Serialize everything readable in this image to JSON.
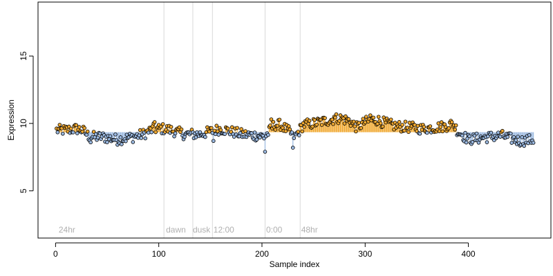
{
  "chart_data": {
    "type": "scatter",
    "title": "",
    "xlabel": "Sample index",
    "ylabel": "Expression",
    "xlim": [
      -17,
      480
    ],
    "ylim": [
      1.5,
      19.0
    ],
    "xticks": [
      0,
      100,
      200,
      300,
      400
    ],
    "yticks": [
      5,
      10,
      15
    ],
    "grid": false,
    "legend": "none",
    "baseline": 9.35,
    "x_range": [
      1,
      463
    ],
    "segment_boundaries": [
      105,
      133,
      152,
      203,
      237
    ],
    "segment_labels": [
      {
        "x": 3,
        "text": "24hr"
      },
      {
        "x": 107,
        "text": "dawn"
      },
      {
        "x": 133,
        "text": "dusk"
      },
      {
        "x": 153,
        "text": "12:00"
      },
      {
        "x": 204,
        "text": "0:00"
      },
      {
        "x": 238,
        "text": "48hr"
      }
    ],
    "profile": [
      [
        1,
        9.5
      ],
      [
        10,
        9.5
      ],
      [
        20,
        9.6
      ],
      [
        26,
        9.5
      ],
      [
        33,
        9.0
      ],
      [
        45,
        9.0
      ],
      [
        60,
        8.8
      ],
      [
        75,
        9.0
      ],
      [
        85,
        9.2
      ],
      [
        95,
        9.6
      ],
      [
        105,
        9.6
      ],
      [
        112,
        9.5
      ],
      [
        125,
        9.2
      ],
      [
        133,
        9.2
      ],
      [
        140,
        9.2
      ],
      [
        150,
        9.4
      ],
      [
        160,
        9.6
      ],
      [
        170,
        9.4
      ],
      [
        180,
        9.2
      ],
      [
        195,
        9.1
      ],
      [
        203,
        9.0
      ],
      [
        212,
        9.9
      ],
      [
        218,
        9.9
      ],
      [
        226,
        9.4
      ],
      [
        232,
        9.0
      ],
      [
        240,
        9.9
      ],
      [
        250,
        10.0
      ],
      [
        262,
        10.2
      ],
      [
        275,
        10.4
      ],
      [
        285,
        10.2
      ],
      [
        292,
        9.7
      ],
      [
        300,
        10.1
      ],
      [
        310,
        10.3
      ],
      [
        320,
        10.0
      ],
      [
        330,
        9.8
      ],
      [
        345,
        9.7
      ],
      [
        355,
        9.6
      ],
      [
        368,
        9.7
      ],
      [
        378,
        9.8
      ],
      [
        385,
        10.0
      ],
      [
        390,
        9.4
      ],
      [
        400,
        8.8
      ],
      [
        410,
        8.9
      ],
      [
        420,
        9.0
      ],
      [
        432,
        9.1
      ],
      [
        440,
        8.9
      ],
      [
        450,
        8.7
      ],
      [
        463,
        8.8
      ]
    ],
    "series_colors": {
      "above": "#f0a830",
      "below": "#9ab8e0"
    }
  }
}
